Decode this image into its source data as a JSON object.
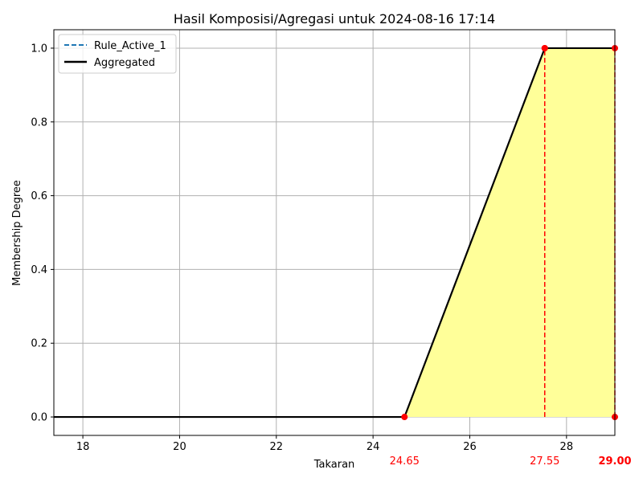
{
  "chart_data": {
    "type": "line",
    "title": "Hasil Komposisi/Agregasi untuk 2024-08-16 17:14",
    "xlabel": "Takaran",
    "ylabel": "Membership Degree",
    "xlim": [
      17.4,
      29.0
    ],
    "ylim": [
      -0.05,
      1.05
    ],
    "grid": true,
    "legend_position": "upper-left",
    "xticks": [
      18,
      20,
      22,
      24,
      26,
      28
    ],
    "xtick_labels": [
      "18",
      "20",
      "22",
      "24",
      "26",
      "28"
    ],
    "yticks": [
      0.0,
      0.2,
      0.4,
      0.6,
      0.8,
      1.0
    ],
    "ytick_labels": [
      "0.0",
      "0.2",
      "0.4",
      "0.6",
      "0.8",
      "1.0"
    ],
    "series": [
      {
        "name": "Rule_Active_1",
        "style": "dashed",
        "color": "#1f77b4",
        "x": [
          17.4,
          24.65,
          27.55,
          29.0
        ],
        "y": [
          0,
          0,
          1,
          1
        ]
      },
      {
        "name": "Aggregated",
        "style": "solid",
        "color": "#000000",
        "x": [
          17.4,
          24.65,
          27.55,
          29.0
        ],
        "y": [
          0,
          0,
          1,
          1
        ]
      }
    ],
    "fill": {
      "color": "#ffff99",
      "x": [
        24.65,
        27.55,
        29.0
      ],
      "y": [
        0,
        1,
        1
      ]
    },
    "markers": {
      "color": "#ff0000",
      "points": [
        {
          "x": 24.65,
          "y": 0
        },
        {
          "x": 27.55,
          "y": 1
        },
        {
          "x": 27.55,
          "y": 1
        },
        {
          "x": 29.0,
          "y": 1
        },
        {
          "x": 29.0,
          "y": 0
        }
      ]
    },
    "vlines": [
      {
        "x": 27.55,
        "y0": 0,
        "y1": 1,
        "color": "#ff0000"
      },
      {
        "x": 29.0,
        "y0": 0,
        "y1": 1,
        "color": "#ff0000"
      }
    ],
    "annotations": [
      {
        "x": 24.65,
        "label": "24.65",
        "bold": false,
        "color": "#ff0000"
      },
      {
        "x": 27.55,
        "label": "27.55",
        "bold": false,
        "color": "#ff0000"
      },
      {
        "x": 29.0,
        "label": "29.00",
        "bold": true,
        "color": "#ff0000"
      }
    ]
  }
}
